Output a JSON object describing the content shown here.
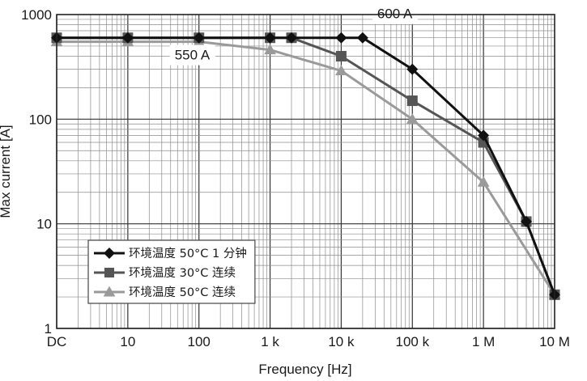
{
  "chart_data": {
    "type": "line",
    "title": "",
    "xlabel": "Frequency [Hz]",
    "ylabel": "Max current [A]",
    "xscale": "log",
    "yscale": "log",
    "xlim": [
      1,
      10000000
    ],
    "ylim": [
      1,
      1000
    ],
    "grid": true,
    "legend_position": "bottom-left",
    "x_tick_labels": [
      {
        "value": 1,
        "label": "DC"
      },
      {
        "value": 10,
        "label": "10"
      },
      {
        "value": 100,
        "label": "100"
      },
      {
        "value": 1000,
        "label": "1 k"
      },
      {
        "value": 10000,
        "label": "10 k"
      },
      {
        "value": 100000,
        "label": "100 k"
      },
      {
        "value": 1000000,
        "label": "1 M"
      },
      {
        "value": 10000000,
        "label": "10 M"
      }
    ],
    "y_tick_labels": [
      {
        "value": 1,
        "label": "1"
      },
      {
        "value": 10,
        "label": "10"
      },
      {
        "value": 100,
        "label": "100"
      },
      {
        "value": 1000,
        "label": "1000"
      }
    ],
    "series": [
      {
        "name": "环境温度 50°C 1 分钟",
        "color": "#111111",
        "marker": "diamond",
        "points": [
          [
            1,
            600
          ],
          [
            10,
            600
          ],
          [
            100,
            600
          ],
          [
            1000,
            600
          ],
          [
            2000,
            600
          ],
          [
            10000,
            600
          ],
          [
            20000,
            600
          ],
          [
            100000,
            300
          ],
          [
            1000000,
            70
          ],
          [
            4000000,
            10.5
          ],
          [
            10000000,
            2.1
          ]
        ]
      },
      {
        "name": "环境温度 30°C 连续",
        "color": "#555555",
        "marker": "square",
        "points": [
          [
            1,
            600
          ],
          [
            10,
            600
          ],
          [
            100,
            600
          ],
          [
            1000,
            600
          ],
          [
            2000,
            600
          ],
          [
            10000,
            400
          ],
          [
            100000,
            150
          ],
          [
            1000000,
            60
          ],
          [
            4000000,
            10.5
          ],
          [
            10000000,
            2.1
          ]
        ]
      },
      {
        "name": "环境温度 50°C 连续",
        "color": "#9a9a9a",
        "marker": "triangle",
        "points": [
          [
            1,
            550
          ],
          [
            10,
            550
          ],
          [
            100,
            550
          ],
          [
            1000,
            460
          ],
          [
            10000,
            290
          ],
          [
            100000,
            100
          ],
          [
            1000000,
            25
          ],
          [
            10000000,
            2.1
          ]
        ]
      }
    ],
    "annotations": [
      {
        "text": "600 A",
        "x": 20000,
        "y": 600
      },
      {
        "text": "550 A",
        "x": 100,
        "y": 550
      }
    ]
  }
}
